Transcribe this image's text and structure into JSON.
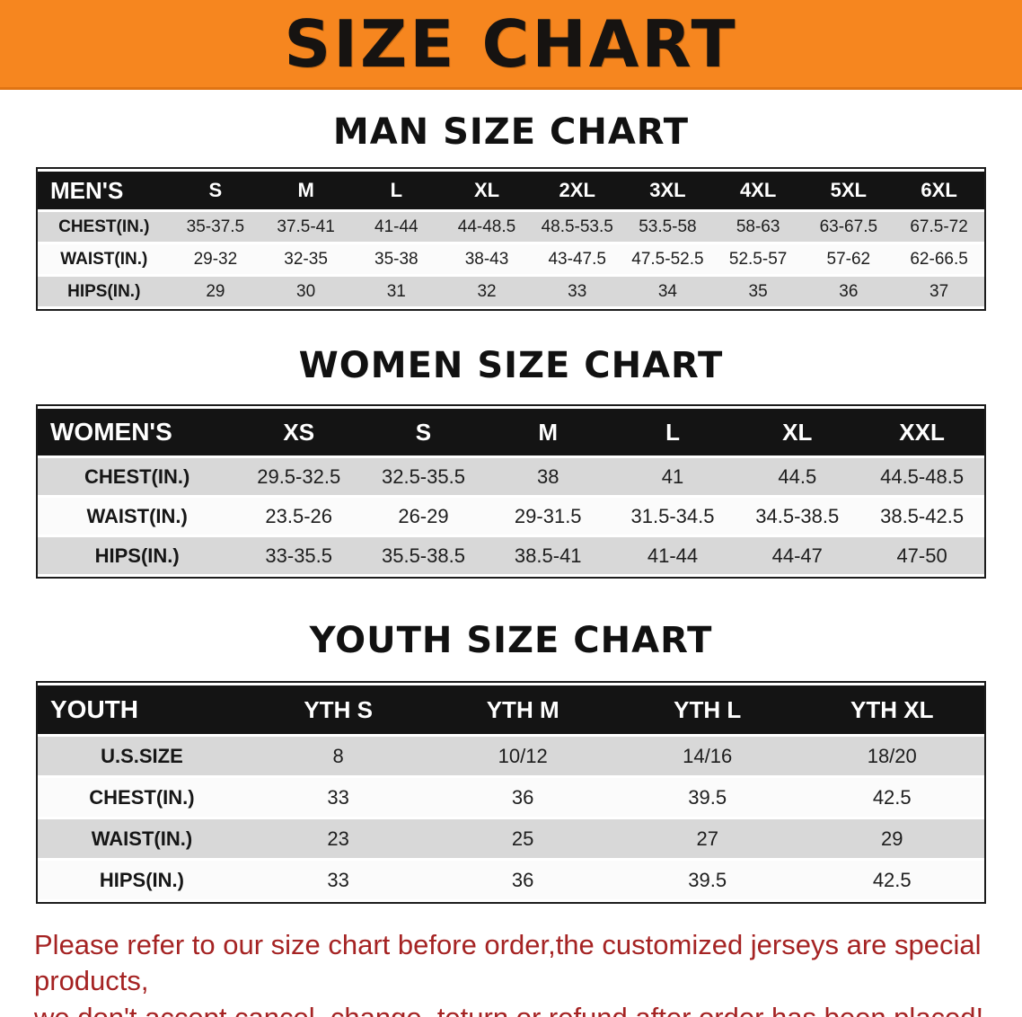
{
  "banner": {
    "title": "SIZE CHART",
    "bg_color": "#F6861F",
    "text_color": "#161311"
  },
  "men": {
    "heading": "MAN SIZE CHART",
    "table": {
      "header": [
        "MEN'S",
        "S",
        "M",
        "L",
        "XL",
        "2XL",
        "3XL",
        "4XL",
        "5XL",
        "6XL"
      ],
      "rows": [
        {
          "label": "CHEST(IN.)",
          "values": [
            "35-37.5",
            "37.5-41",
            "41-44",
            "44-48.5",
            "48.5-53.5",
            "53.5-58",
            "58-63",
            "63-67.5",
            "67.5-72"
          ]
        },
        {
          "label": "WAIST(IN.)",
          "values": [
            "29-32",
            "32-35",
            "35-38",
            "38-43",
            "43-47.5",
            "47.5-52.5",
            "52.5-57",
            "57-62",
            "62-66.5"
          ]
        },
        {
          "label": "HIPS(IN.)",
          "values": [
            "29",
            "30",
            "31",
            "32",
            "33",
            "34",
            "35",
            "36",
            "37"
          ]
        }
      ]
    }
  },
  "women": {
    "heading": "WOMEN SIZE CHART",
    "table": {
      "header": [
        "WOMEN'S",
        "XS",
        "S",
        "M",
        "L",
        "XL",
        "XXL"
      ],
      "rows": [
        {
          "label": "CHEST(IN.)",
          "values": [
            "29.5-32.5",
            "32.5-35.5",
            "38",
            "41",
            "44.5",
            "44.5-48.5"
          ]
        },
        {
          "label": "WAIST(IN.)",
          "values": [
            "23.5-26",
            "26-29",
            "29-31.5",
            "31.5-34.5",
            "34.5-38.5",
            "38.5-42.5"
          ]
        },
        {
          "label": "HIPS(IN.)",
          "values": [
            "33-35.5",
            "35.5-38.5",
            "38.5-41",
            "41-44",
            "44-47",
            "47-50"
          ]
        }
      ]
    }
  },
  "youth": {
    "heading": "YOUTH SIZE CHART",
    "table": {
      "header": [
        "YOUTH",
        "YTH S",
        "YTH M",
        "YTH L",
        "YTH XL"
      ],
      "rows": [
        {
          "label": "U.S.SIZE",
          "values": [
            "8",
            "10/12",
            "14/16",
            "18/20"
          ]
        },
        {
          "label": "CHEST(IN.)",
          "values": [
            "33",
            "36",
            "39.5",
            "42.5"
          ]
        },
        {
          "label": "WAIST(IN.)",
          "values": [
            "23",
            "25",
            "27",
            "29"
          ]
        },
        {
          "label": "HIPS(IN.)",
          "values": [
            "33",
            "36",
            "39.5",
            "42.5"
          ]
        }
      ]
    }
  },
  "footer": {
    "color": "#A52323",
    "lines": [
      "Please refer to our size chart before order,the customized jerseys are special products,",
      "we don't accept cancel, change, teturn or refund after order has been placed!"
    ]
  }
}
